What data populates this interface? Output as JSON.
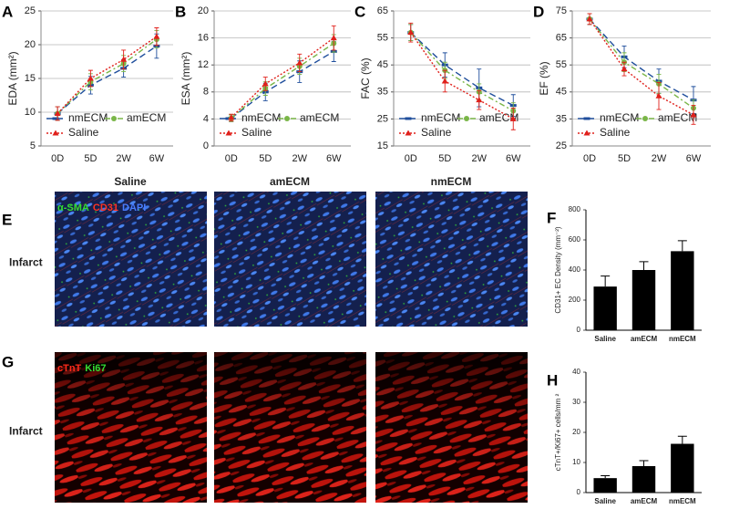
{
  "chart_data": [
    {
      "type": "line",
      "label": "A",
      "ylabel": "EDA (mm²)",
      "categories": [
        "0D",
        "5D",
        "2W",
        "6W"
      ],
      "ylim": [
        5,
        25
      ],
      "yticks": [
        5,
        10,
        15,
        20,
        25
      ],
      "grid": true,
      "series": [
        {
          "name": "nmECM",
          "color": "#1f4e9c",
          "values": [
            9.8,
            14,
            16.5,
            19.8
          ],
          "errors": [
            1,
            1.3,
            1.3,
            1.8
          ]
        },
        {
          "name": "amECM",
          "color": "#7ab648",
          "values": [
            9.8,
            14.5,
            17.2,
            20.8
          ],
          "errors": [
            1,
            1.2,
            1.2,
            1.3
          ]
        },
        {
          "name": "Saline",
          "color": "#e0201b",
          "values": [
            9.8,
            15,
            17.8,
            21.2
          ],
          "errors": [
            1,
            1.2,
            1.4,
            1.3
          ]
        }
      ]
    },
    {
      "type": "line",
      "label": "B",
      "ylabel": "ESA (mm²)",
      "categories": [
        "0D",
        "5D",
        "2W",
        "6W"
      ],
      "ylim": [
        0,
        20
      ],
      "yticks": [
        0,
        4,
        8,
        12,
        16,
        20
      ],
      "grid": true,
      "series": [
        {
          "name": "nmECM",
          "color": "#1f4e9c",
          "values": [
            4.1,
            8,
            11,
            14
          ],
          "errors": [
            0.5,
            1.3,
            1.6,
            1.5
          ]
        },
        {
          "name": "amECM",
          "color": "#7ab648",
          "values": [
            4.1,
            8.5,
            11.8,
            15.2
          ],
          "errors": [
            0.5,
            1,
            1.2,
            1.3
          ]
        },
        {
          "name": "Saline",
          "color": "#e0201b",
          "values": [
            4.2,
            9.2,
            12.3,
            16
          ],
          "errors": [
            0.5,
            1,
            1.3,
            1.8
          ]
        }
      ]
    },
    {
      "type": "line",
      "label": "C",
      "ylabel": "FAC (%)",
      "categories": [
        "0D",
        "5D",
        "2W",
        "6W"
      ],
      "ylim": [
        15,
        65
      ],
      "yticks": [
        15,
        25,
        35,
        45,
        55,
        65
      ],
      "grid": true,
      "series": [
        {
          "name": "nmECM",
          "color": "#1f4e9c",
          "values": [
            57,
            45,
            36.5,
            30
          ],
          "errors": [
            3,
            4.5,
            7,
            4
          ]
        },
        {
          "name": "amECM",
          "color": "#7ab648",
          "values": [
            57,
            43,
            35,
            28
          ],
          "errors": [
            3,
            3,
            3,
            3
          ]
        },
        {
          "name": "Saline",
          "color": "#e0201b",
          "values": [
            57,
            39,
            32,
            25
          ],
          "errors": [
            3.5,
            4,
            3.5,
            4
          ]
        }
      ]
    },
    {
      "type": "line",
      "label": "D",
      "ylabel": "EF (%)",
      "categories": [
        "0D",
        "5D",
        "2W",
        "6W"
      ],
      "ylim": [
        25,
        75
      ],
      "yticks": [
        25,
        35,
        45,
        55,
        65,
        75
      ],
      "grid": true,
      "series": [
        {
          "name": "nmECM",
          "color": "#1f4e9c",
          "values": [
            72,
            58,
            49,
            42
          ],
          "errors": [
            2,
            4,
            4.5,
            5
          ]
        },
        {
          "name": "amECM",
          "color": "#7ab648",
          "values": [
            72,
            56,
            48,
            39
          ],
          "errors": [
            2,
            3.5,
            3.5,
            3
          ]
        },
        {
          "name": "Saline",
          "color": "#e0201b",
          "values": [
            72,
            53.5,
            43.5,
            36.5
          ],
          "errors": [
            2,
            2.5,
            5,
            3.5
          ]
        }
      ]
    },
    {
      "type": "bar",
      "label": "F",
      "ylabel": "CD31+ EC Density (mm⁻²)",
      "categories": [
        "Saline",
        "amECM",
        "nmECM"
      ],
      "ylim": [
        0,
        800
      ],
      "yticks": [
        0,
        200,
        400,
        600,
        800
      ],
      "grid": false,
      "color": "#000000",
      "values": [
        290,
        400,
        525
      ],
      "errors": [
        70,
        55,
        70
      ]
    },
    {
      "type": "bar",
      "label": "H",
      "ylabel": "cTnT+/Ki67+ cells/mm ²",
      "categories": [
        "Saline",
        "amECM",
        "nmECM"
      ],
      "ylim": [
        0,
        40
      ],
      "yticks": [
        0,
        10,
        20,
        30,
        40
      ],
      "grid": false,
      "color": "#000000",
      "values": [
        4.8,
        8.8,
        16.2
      ],
      "errors": [
        0.8,
        1.8,
        2.5
      ]
    }
  ],
  "figure": {
    "image_panels": [
      {
        "label": "E",
        "columns": [
          "Saline",
          "amECM",
          "nmECM"
        ],
        "row_label": "Infarct",
        "stains": [
          {
            "name": "α-SMA",
            "color": "#33dd33"
          },
          {
            "name": "CD31",
            "color": "#ff3322"
          },
          {
            "name": "DAPI",
            "color": "#4a7dff"
          }
        ]
      },
      {
        "label": "G",
        "row_label": "Infarct",
        "stains": [
          {
            "name": "cTnT",
            "color": "#ff2a1a"
          },
          {
            "name": "Ki67",
            "color": "#33dd33"
          }
        ]
      }
    ]
  }
}
